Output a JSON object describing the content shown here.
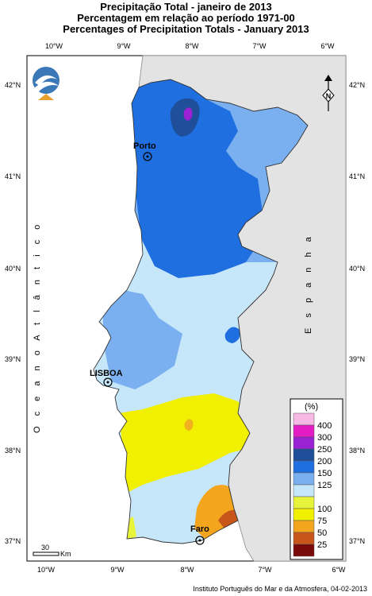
{
  "titles": {
    "line1": "Precipitação Total  - janeiro de 2013",
    "line2": "Percentagem em relação ao período 1971-00",
    "line3": "Percentages of Precipitation Totals - January 2013"
  },
  "axes": {
    "lon_labels": [
      "10°W",
      "9°W",
      "8°W",
      "7°W",
      "6°W"
    ],
    "lat_labels": [
      "42°N",
      "41°N",
      "40°N",
      "39°N",
      "38°N",
      "37°N"
    ]
  },
  "regions": {
    "ocean": "O c e a n o   A t l â n t i c o",
    "spain": "E s p a n h a"
  },
  "cities": [
    {
      "name": "Porto"
    },
    {
      "name": "LISBOA"
    },
    {
      "name": "Faro"
    }
  ],
  "legend": {
    "title": "(%)",
    "items": [
      {
        "label": "400",
        "color": "#f7b8e6"
      },
      {
        "label": "300",
        "color": "#e41cc4"
      },
      {
        "label": "250",
        "color": "#9b22d4"
      },
      {
        "label": "200",
        "color": "#1f4f99"
      },
      {
        "label": "150",
        "color": "#1f6fe0"
      },
      {
        "label": "125",
        "color": "#7ab0f0"
      },
      {
        "label": "",
        "color": "#c6e6fa"
      },
      {
        "label": "100",
        "color": "#e8f43a"
      },
      {
        "label": "75",
        "color": "#f0f000"
      },
      {
        "label": "50",
        "color": "#f3a51e"
      },
      {
        "label": "25",
        "color": "#c8561a"
      },
      {
        "label": "",
        "color": "#7a0a0a"
      }
    ]
  },
  "scale": {
    "value": "30",
    "unit": "Km"
  },
  "north": "N",
  "credit": "Instituto Português do Mar e da Atmosfera, 04-02-2013",
  "colors": {
    "land_spain": "#e3e3e3",
    "frame": "#000000"
  }
}
